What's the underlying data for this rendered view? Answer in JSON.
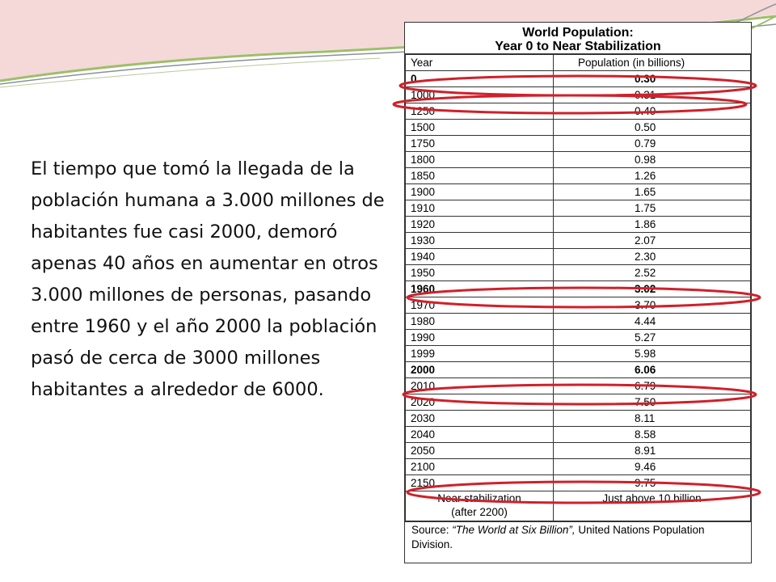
{
  "paragraph": "El tiempo que tomó la llegada de la población humana a 3.000 millones de habitantes fue casi 2000, demoró apenas 40 años en aumentar en otros 3.000 millones de personas, pasando entre 1960 y el año 2000 la población pasó de cerca de 3000 millones habitantes a alrededor de 6000.",
  "table": {
    "title_line1": "World Population:",
    "title_line2": "Year 0 to Near Stabilization",
    "col_year": "Year",
    "col_pop": "Population (in billions)",
    "rows": [
      {
        "year": "0",
        "pop": "0.30",
        "bold": true
      },
      {
        "year": "1000",
        "pop": "0.31"
      },
      {
        "year": "1250",
        "pop": "0.40"
      },
      {
        "year": "1500",
        "pop": "0.50"
      },
      {
        "year": "1750",
        "pop": "0.79"
      },
      {
        "year": "1800",
        "pop": "0.98"
      },
      {
        "year": "1850",
        "pop": "1.26"
      },
      {
        "year": "1900",
        "pop": "1.65"
      },
      {
        "year": "1910",
        "pop": "1.75"
      },
      {
        "year": "1920",
        "pop": "1.86"
      },
      {
        "year": "1930",
        "pop": "2.07"
      },
      {
        "year": "1940",
        "pop": "2.30"
      },
      {
        "year": "1950",
        "pop": "2.52"
      },
      {
        "year": "1960",
        "pop": "3.02",
        "bold": true
      },
      {
        "year": "1970",
        "pop": "3.70"
      },
      {
        "year": "1980",
        "pop": "4.44"
      },
      {
        "year": "1990",
        "pop": "5.27"
      },
      {
        "year": "1999",
        "pop": "5.98"
      },
      {
        "year": "2000",
        "pop": "6.06",
        "bold": true
      },
      {
        "year": "2010",
        "pop": "6.79"
      },
      {
        "year": "2020",
        "pop": "7.50"
      },
      {
        "year": "2030",
        "pop": "8.11"
      },
      {
        "year": "2040",
        "pop": "8.58"
      },
      {
        "year": "2050",
        "pop": "8.91"
      },
      {
        "year": "2100",
        "pop": "9.46"
      },
      {
        "year": "2150",
        "pop": "9.75"
      }
    ],
    "near_line1": "Near stabilization",
    "near_line2": "(after 2200)",
    "near_value": "Just above 10 billion",
    "source_label": "Source:",
    "source_title": "“The World at Six Billion”,",
    "source_org": "United Nations Population Division."
  },
  "colors": {
    "highlight": "#d0202a",
    "deco_green": "#9cbf6a",
    "deco_gray": "#8a9199"
  }
}
